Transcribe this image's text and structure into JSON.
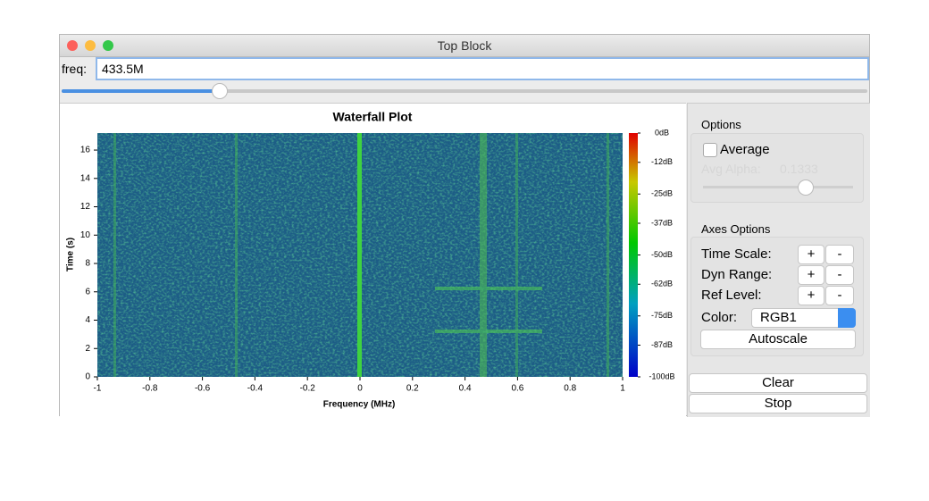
{
  "window": {
    "title": "Top Block"
  },
  "freq": {
    "label": "freq:",
    "value": "433.5M"
  },
  "plot": {
    "title": "Waterfall Plot",
    "x_label": "Frequency (MHz)",
    "y_label": "Time (s)",
    "xlim": [
      -1,
      1
    ],
    "xticks": [
      -1,
      -0.8,
      -0.6,
      -0.4,
      -0.2,
      0,
      0.2,
      0.4,
      0.6,
      0.8,
      1
    ],
    "ylim": [
      0,
      17.2
    ],
    "yticks": [
      0,
      2,
      4,
      6,
      8,
      10,
      12,
      14,
      16
    ],
    "colorbar_lim": [
      -100,
      0
    ],
    "colorbar_ticks": [
      {
        "value": 0,
        "label": "0dB"
      },
      {
        "value": -12,
        "label": "-12dB"
      },
      {
        "value": -25,
        "label": "-25dB"
      },
      {
        "value": -37,
        "label": "-37dB"
      },
      {
        "value": -50,
        "label": "-50dB"
      },
      {
        "value": -62,
        "label": "-62dB"
      },
      {
        "value": -75,
        "label": "-75dB"
      },
      {
        "value": -87,
        "label": "-87dB"
      },
      {
        "value": -100,
        "label": "-100dB"
      }
    ]
  },
  "options": {
    "title": "Options",
    "average": "Average",
    "avg_alpha": "Avg Alpha:",
    "avg_alpha_value": "0.1333"
  },
  "axes_options": {
    "title": "Axes Options",
    "rows": [
      {
        "label": "Time Scale:",
        "plus": "+",
        "minus": "-"
      },
      {
        "label": "Dyn Range:",
        "plus": "+",
        "minus": "-"
      },
      {
        "label": "Ref Level:",
        "plus": "+",
        "minus": "-"
      }
    ],
    "color_label": "Color:",
    "color_value": "RGB1",
    "autoscale": "Autoscale"
  },
  "buttons": [
    "Clear",
    "Stop"
  ]
}
